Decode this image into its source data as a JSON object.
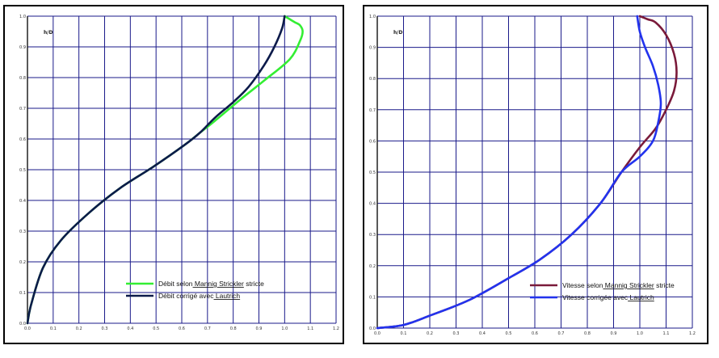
{
  "chart_data": [
    {
      "type": "line",
      "title": "",
      "ylabel": "h/D",
      "xlabel": "",
      "xlim": [
        0,
        1.2
      ],
      "ylim": [
        0,
        1.0
      ],
      "xticks": [
        "0.0",
        "0.1",
        "0.2",
        "0.3",
        "0.4",
        "0.5",
        "0.6",
        "0.7",
        "0.8",
        "0.9",
        "1.0",
        "1.1",
        "1.2"
      ],
      "yticks": [
        "0.0",
        "0.1",
        "0.2",
        "0.3",
        "0.4",
        "0.5",
        "0.6",
        "0.7",
        "0.8",
        "0.9",
        "1.0"
      ],
      "grid": true,
      "legend_position": "bottom-right",
      "series": [
        {
          "name": "Débit selon Mannig Strickler stricte",
          "color": "#33ee33",
          "x": [
            0.0,
            0.014,
            0.06,
            0.13,
            0.24,
            0.36,
            0.49,
            0.61,
            0.67,
            0.73,
            0.83,
            0.92,
            1.02,
            1.06,
            1.07,
            1.06,
            1.04,
            1.02,
            1.0
          ],
          "y": [
            0.0,
            0.06,
            0.18,
            0.27,
            0.36,
            0.44,
            0.51,
            0.58,
            0.62,
            0.66,
            0.73,
            0.79,
            0.86,
            0.92,
            0.95,
            0.97,
            0.98,
            0.99,
            1.0
          ]
        },
        {
          "name": "Débit corrigé avec Lautrich",
          "color": "#0c1a4a",
          "x": [
            0.0,
            0.014,
            0.06,
            0.13,
            0.24,
            0.36,
            0.49,
            0.61,
            0.67,
            0.73,
            0.8,
            0.86,
            0.92,
            0.96,
            0.99,
            1.0
          ],
          "y": [
            0.0,
            0.06,
            0.18,
            0.27,
            0.36,
            0.44,
            0.51,
            0.58,
            0.62,
            0.67,
            0.72,
            0.77,
            0.84,
            0.9,
            0.96,
            1.0
          ]
        }
      ]
    },
    {
      "type": "line",
      "title": "",
      "ylabel": "h/D",
      "xlabel": "",
      "xlim": [
        0,
        1.2
      ],
      "ylim": [
        0,
        1.0
      ],
      "xticks": [
        "0.0",
        "0.1",
        "0.2",
        "0.3",
        "0.4",
        "0.5",
        "0.6",
        "0.7",
        "0.8",
        "0.9",
        "1.0",
        "1.1",
        "1.2"
      ],
      "yticks": [
        "0.0",
        "0.1",
        "0.2",
        "0.3",
        "0.4",
        "0.5",
        "0.6",
        "0.7",
        "0.8",
        "0.9",
        "1.0"
      ],
      "grid": true,
      "legend_position": "bottom-right",
      "series": [
        {
          "name": "Vitesse selon Mannig Strickler stricte",
          "color": "#7a1a3a",
          "x": [
            0.0,
            0.1,
            0.2,
            0.35,
            0.5,
            0.62,
            0.74,
            0.85,
            0.93,
            1.0,
            1.06,
            1.1,
            1.13,
            1.14,
            1.13,
            1.1,
            1.06,
            1.03,
            1.0
          ],
          "y": [
            0.0,
            0.01,
            0.04,
            0.09,
            0.16,
            0.22,
            0.3,
            0.4,
            0.5,
            0.58,
            0.64,
            0.7,
            0.76,
            0.82,
            0.88,
            0.94,
            0.98,
            0.99,
            1.0
          ]
        },
        {
          "name": "Vitesse corrigée avec Lautrich",
          "color": "#2233ee",
          "x": [
            0.0,
            0.1,
            0.2,
            0.35,
            0.5,
            0.62,
            0.74,
            0.85,
            0.93,
            1.0,
            1.05,
            1.07,
            1.08,
            1.07,
            1.05,
            1.02,
            1.0,
            0.99
          ],
          "y": [
            0.0,
            0.01,
            0.04,
            0.09,
            0.16,
            0.22,
            0.3,
            0.4,
            0.5,
            0.55,
            0.6,
            0.66,
            0.72,
            0.78,
            0.84,
            0.9,
            0.95,
            1.0
          ]
        }
      ]
    }
  ]
}
